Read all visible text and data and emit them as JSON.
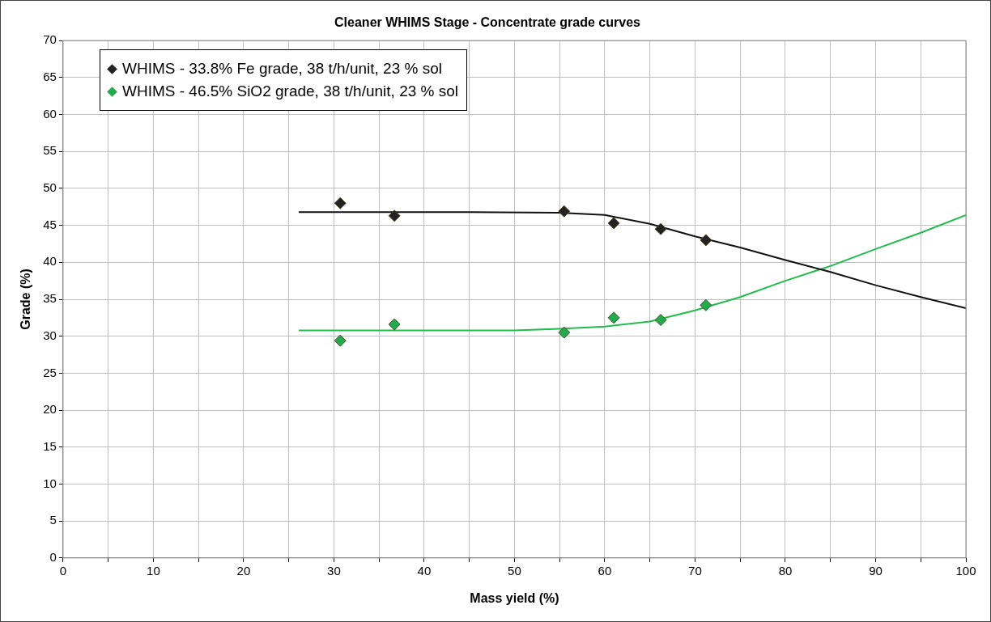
{
  "chart_data": {
    "type": "scatter",
    "title": "Cleaner WHIMS Stage - Concentrate grade curves",
    "xlabel": "Mass yield (%)",
    "ylabel": "Grade (%)",
    "xlim": [
      0,
      100
    ],
    "ylim": [
      0,
      70
    ],
    "xticks": [
      0,
      {
        "value": 5,
        "label": null
      },
      10,
      {
        "value": 15,
        "label": null
      },
      20,
      {
        "value": 25,
        "label": null
      },
      30,
      {
        "value": 35,
        "label": null
      },
      40,
      {
        "value": 45,
        "label": null
      },
      50,
      {
        "value": 55,
        "label": null
      },
      60,
      {
        "value": 65,
        "label": null
      },
      70,
      {
        "value": 75,
        "label": null
      },
      80,
      {
        "value": 85,
        "label": null
      },
      90,
      {
        "value": 95,
        "label": null
      },
      100
    ],
    "yticks": [
      0,
      5,
      10,
      15,
      20,
      25,
      30,
      35,
      40,
      45,
      50,
      55,
      60,
      65,
      70
    ],
    "grid": true,
    "legend": "top left",
    "marker": "diamond",
    "series": [
      {
        "name": "WHIMS - 33.8% Fe grade, 38 t/h/unit, 23 % sol",
        "color": "#222222",
        "x": [
          30.7,
          36.7,
          55.5,
          61.0,
          66.2,
          71.2
        ],
        "values": [
          48.0,
          46.3,
          46.9,
          45.3,
          44.5,
          43.0
        ]
      },
      {
        "name": "WHIMS - 46.5% SiO2 grade, 38 t/h/unit, 23 % sol",
        "color": "#22aa4c",
        "x": [
          30.7,
          36.7,
          55.5,
          61.0,
          66.2,
          71.2
        ],
        "values": [
          29.4,
          31.6,
          30.5,
          32.5,
          32.2,
          34.2
        ]
      },
      {
        "type": "line",
        "color": "#111111",
        "marker": "none",
        "x": [
          26.1,
          35,
          45,
          55,
          60,
          65,
          70,
          75,
          80,
          85,
          90,
          95,
          100
        ],
        "values": [
          46.8,
          46.8,
          46.8,
          46.7,
          46.4,
          45.2,
          43.5,
          42.0,
          40.3,
          38.7,
          36.9,
          35.3,
          33.8
        ]
      },
      {
        "type": "line",
        "color": "#22bb4c",
        "marker": "none",
        "x": [
          26.1,
          40,
          50,
          55,
          60,
          65,
          70,
          75,
          80,
          85,
          90,
          95,
          100
        ],
        "values": [
          30.8,
          30.8,
          30.8,
          31.0,
          31.3,
          32.0,
          33.5,
          35.3,
          37.5,
          39.5,
          41.8,
          44.0,
          46.4
        ]
      }
    ]
  }
}
